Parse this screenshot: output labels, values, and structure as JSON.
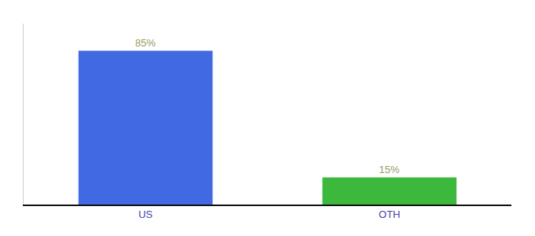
{
  "chart_data": {
    "type": "bar",
    "categories": [
      "US",
      "OTH"
    ],
    "values": [
      85,
      15
    ],
    "colors": [
      "#4169e1",
      "#3cb83c"
    ],
    "data_labels": true,
    "value_labels": [
      "85%",
      "15%"
    ],
    "ylim": [
      0,
      100
    ],
    "tick_labels": "x",
    "grid": false
  }
}
